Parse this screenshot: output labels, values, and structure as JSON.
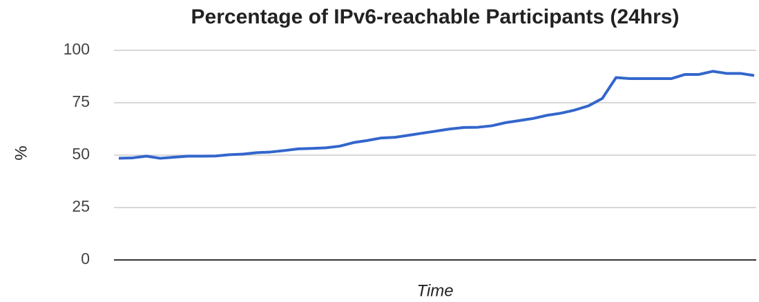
{
  "chart_data": {
    "type": "line",
    "title": "Percentage of IPv6-reachable Participants (24hrs)",
    "x_label": "Time",
    "y_label": "%",
    "categories": [
      null,
      null,
      null,
      null,
      null,
      null,
      null,
      null,
      null,
      null,
      null,
      null,
      null,
      null,
      null,
      null,
      null,
      null,
      null,
      null,
      null,
      null,
      null,
      null,
      null,
      null,
      null,
      null,
      null,
      null,
      null,
      null,
      null,
      null,
      null,
      null,
      null,
      null,
      null,
      null,
      null,
      null,
      null,
      null,
      null,
      null,
      null
    ],
    "series": [
      {
        "name": "IPv6-reachable",
        "color": "#3366cc",
        "values": [
          48.5,
          48.7,
          49.5,
          48.5,
          49,
          49.5,
          49.5,
          49.6,
          50.2,
          50.5,
          51.2,
          51.5,
          52.2,
          53,
          53.2,
          53.5,
          54.3,
          56,
          57,
          58.2,
          58.5,
          59.5,
          60.5,
          61.5,
          62.5,
          63.2,
          63.3,
          64,
          65.5,
          66.5,
          67.5,
          69,
          70,
          71.5,
          73.5,
          77,
          87,
          86.5,
          86.5,
          86.5,
          86.5,
          88.5,
          88.5,
          90,
          89,
          89,
          88
        ]
      }
    ],
    "ylim": [
      0,
      100
    ],
    "yticks": [
      0,
      25,
      50,
      75,
      100
    ],
    "grid": true
  }
}
